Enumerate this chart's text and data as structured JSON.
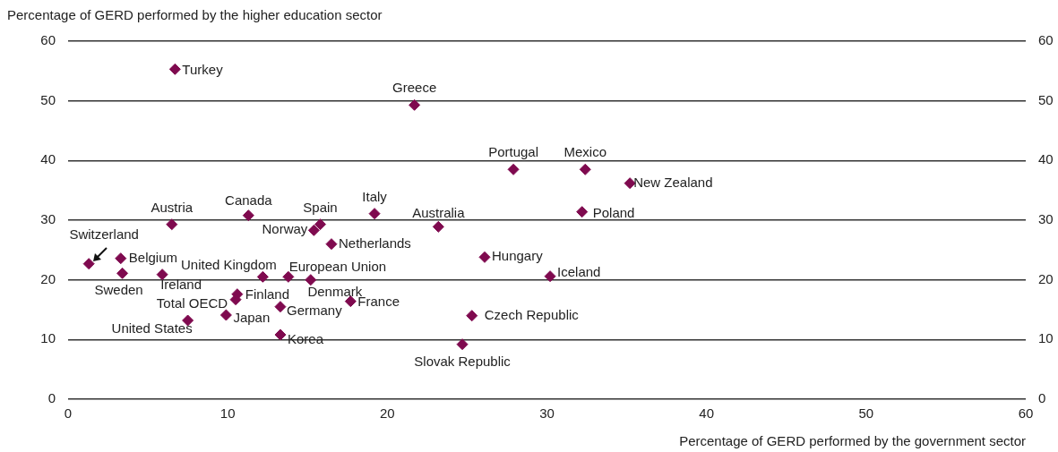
{
  "chart_data": {
    "type": "scatter",
    "xlabel": "Percentage of GERD performed by the government sector",
    "ylabel": "Percentage of GERD performed by the higher education sector",
    "xlim": [
      0,
      60
    ],
    "xticks": [
      0,
      10,
      20,
      30,
      40,
      50,
      60
    ],
    "ylim": [
      0,
      60
    ],
    "yticks": [
      0,
      10,
      20,
      30,
      40,
      50,
      60
    ],
    "y2lim": [
      0,
      60
    ],
    "y2ticks": [
      0,
      10,
      20,
      30,
      40,
      50,
      60
    ],
    "grid": "y",
    "legend": false,
    "marker": "diamond",
    "series": [
      {
        "color": "#7f0a4f",
        "x": [
          6.7,
          21.7,
          27.9,
          32.4,
          35.2,
          32.2,
          23.2,
          19.2,
          15.8,
          15.4,
          16.5,
          11.3,
          6.5,
          1.3,
          3.3,
          3.4,
          5.9,
          12.2,
          13.8,
          15.2,
          10.6,
          10.5,
          13.3,
          17.7,
          9.9,
          7.5,
          13.3,
          26.1,
          30.2,
          25.3,
          24.7
        ],
        "values": [
          55.3,
          49.3,
          38.5,
          38.5,
          36.2,
          31.4,
          28.9,
          31.1,
          29.3,
          28.3,
          26.0,
          30.8,
          29.3,
          22.7,
          23.6,
          21.1,
          20.9,
          20.5,
          20.5,
          20.0,
          17.6,
          16.7,
          15.5,
          16.4,
          14.1,
          13.2,
          10.8,
          23.8,
          20.6,
          14.0,
          9.2
        ]
      }
    ],
    "annotations": [
      {
        "text": "Turkey",
        "x": 6.7,
        "y": 55.3
      },
      {
        "text": "Greece",
        "x": 21.7,
        "y": 49.3
      },
      {
        "text": "Portugal",
        "x": 27.9,
        "y": 38.5
      },
      {
        "text": "Mexico",
        "x": 32.4,
        "y": 38.5
      },
      {
        "text": "New Zealand",
        "x": 35.2,
        "y": 36.2
      },
      {
        "text": "Poland",
        "x": 32.2,
        "y": 31.4
      },
      {
        "text": "Australia",
        "x": 23.2,
        "y": 28.9
      },
      {
        "text": "Italy",
        "x": 19.2,
        "y": 31.1
      },
      {
        "text": "Spain",
        "x": 15.8,
        "y": 29.3
      },
      {
        "text": "Norway",
        "x": 15.4,
        "y": 28.3
      },
      {
        "text": "Netherlands",
        "x": 16.5,
        "y": 26.0
      },
      {
        "text": "Canada",
        "x": 11.3,
        "y": 30.8
      },
      {
        "text": "Austria",
        "x": 6.5,
        "y": 29.3
      },
      {
        "text": "Switzerland",
        "x": 1.3,
        "y": 22.7
      },
      {
        "text": "Belgium",
        "x": 3.3,
        "y": 23.6
      },
      {
        "text": "Sweden",
        "x": 3.4,
        "y": 21.1
      },
      {
        "text": "Ireland",
        "x": 5.9,
        "y": 20.9
      },
      {
        "text": "United Kingdom",
        "x": 12.2,
        "y": 20.5
      },
      {
        "text": "European Union",
        "x": 13.8,
        "y": 20.5
      },
      {
        "text": "Denmark",
        "x": 15.2,
        "y": 20.0
      },
      {
        "text": "Finland",
        "x": 10.6,
        "y": 17.6
      },
      {
        "text": "Total OECD",
        "x": 10.5,
        "y": 16.7
      },
      {
        "text": "Germany",
        "x": 13.3,
        "y": 15.5
      },
      {
        "text": "France",
        "x": 17.7,
        "y": 16.4
      },
      {
        "text": "Japan",
        "x": 9.9,
        "y": 14.1
      },
      {
        "text": "United States",
        "x": 7.5,
        "y": 13.2
      },
      {
        "text": "Korea",
        "x": 13.3,
        "y": 10.8
      },
      {
        "text": "Hungary",
        "x": 26.1,
        "y": 23.8
      },
      {
        "text": "Iceland",
        "x": 30.2,
        "y": 20.6
      },
      {
        "text": "Czech Republic",
        "x": 25.3,
        "y": 14.0
      },
      {
        "text": "Slovak Republic",
        "x": 24.7,
        "y": 9.2
      }
    ]
  }
}
